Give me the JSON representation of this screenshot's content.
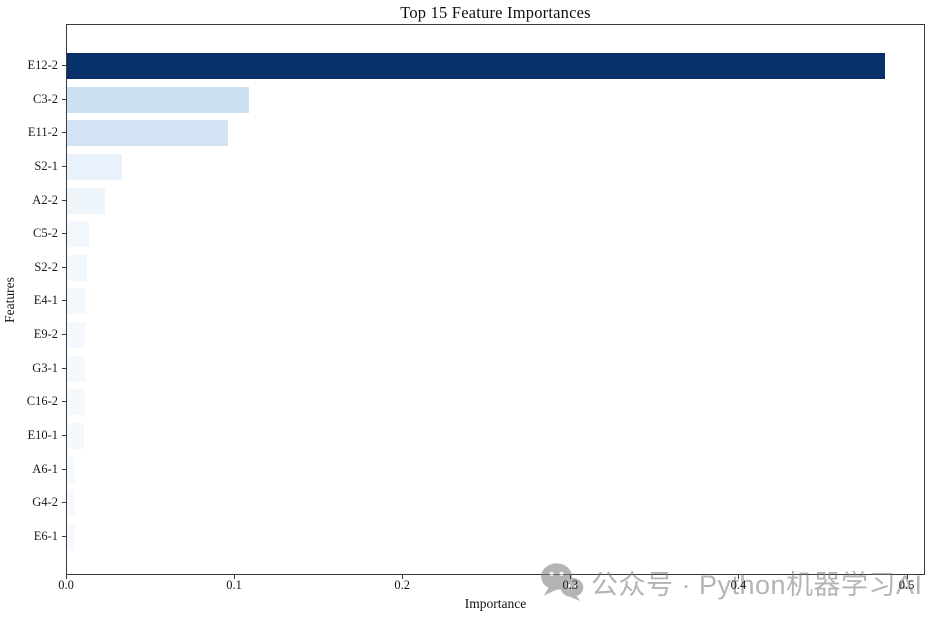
{
  "chart_data": {
    "type": "bar",
    "orientation": "horizontal",
    "title": "Top 15 Feature Importances",
    "xlabel": "Importance",
    "ylabel": "Features",
    "categories": [
      "E12-2",
      "C3-2",
      "E11-2",
      "S2-1",
      "A2-2",
      "C5-2",
      "S2-2",
      "E4-1",
      "E9-2",
      "G3-1",
      "C16-2",
      "E10-1",
      "A6-1",
      "G4-2",
      "E6-1"
    ],
    "values": [
      0.4864,
      0.1084,
      0.0959,
      0.0326,
      0.0229,
      0.013,
      0.0119,
      0.0112,
      0.0107,
      0.0106,
      0.0105,
      0.0104,
      0.0047,
      0.0046,
      0.0045
    ],
    "bar_colors": [
      "#08306b",
      "#cce1f1",
      "#d2e4f3",
      "#e9f2fa",
      "#edf5fb",
      "#f1f7fd",
      "#f2f8fd",
      "#f3f8fd",
      "#f3f9fe",
      "#f4f9fe",
      "#f4f9fe",
      "#f4f9fe",
      "#f5fafe",
      "#f6fafe",
      "#f6faff"
    ],
    "colormap": "Blues",
    "xlim": [
      0,
      0.511
    ],
    "xticks": [
      "0.0",
      "0.1",
      "0.2",
      "0.3",
      "0.4",
      "0.5"
    ],
    "xtick_values": [
      0.0,
      0.1,
      0.2,
      0.3,
      0.4,
      0.5
    ],
    "grid": false,
    "legend": null,
    "background": "#ffffff",
    "axis_color": "#3a3a3a"
  },
  "watermark": {
    "icon": "wechat-icon",
    "text": "公众号 · Python机器学习AI",
    "color": "#7f7f7f"
  }
}
